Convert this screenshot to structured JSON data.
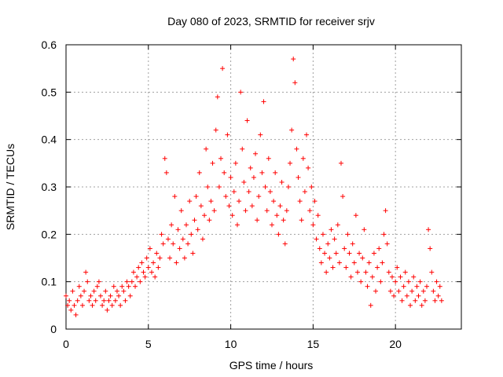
{
  "chart_data": {
    "type": "scatter",
    "title": "Day 080 of 2023, SRMTID for receiver srjv",
    "xlabel": "GPS time / hours",
    "ylabel": "SRMTID / TECUs",
    "xlim": [
      0,
      24
    ],
    "ylim": [
      0,
      0.6
    ],
    "xticks": [
      0,
      5,
      10,
      15,
      20
    ],
    "yticks": [
      0,
      0.1,
      0.2,
      0.3,
      0.4,
      0.5,
      0.6
    ],
    "ytick_labels": [
      "0",
      "0.1",
      "0.2",
      "0.3",
      "0.4",
      "0.5",
      "0.6"
    ],
    "grid": true,
    "marker": "plus",
    "series_color": "#ff0000",
    "series": [
      {
        "name": "SRMTID",
        "points": [
          [
            0.0,
            0.07
          ],
          [
            0.1,
            0.05
          ],
          [
            0.2,
            0.06
          ],
          [
            0.3,
            0.04
          ],
          [
            0.4,
            0.08
          ],
          [
            0.5,
            0.05
          ],
          [
            0.6,
            0.03
          ],
          [
            0.7,
            0.06
          ],
          [
            0.8,
            0.09
          ],
          [
            0.9,
            0.07
          ],
          [
            1.0,
            0.05
          ],
          [
            1.1,
            0.08
          ],
          [
            1.2,
            0.12
          ],
          [
            1.3,
            0.1
          ],
          [
            1.4,
            0.06
          ],
          [
            1.5,
            0.07
          ],
          [
            1.6,
            0.05
          ],
          [
            1.7,
            0.08
          ],
          [
            1.8,
            0.06
          ],
          [
            1.9,
            0.09
          ],
          [
            2.0,
            0.1
          ],
          [
            2.1,
            0.07
          ],
          [
            2.2,
            0.05
          ],
          [
            2.3,
            0.06
          ],
          [
            2.4,
            0.08
          ],
          [
            2.5,
            0.04
          ],
          [
            2.6,
            0.06
          ],
          [
            2.7,
            0.07
          ],
          [
            2.8,
            0.05
          ],
          [
            2.9,
            0.09
          ],
          [
            3.0,
            0.06
          ],
          [
            3.1,
            0.08
          ],
          [
            3.2,
            0.07
          ],
          [
            3.3,
            0.05
          ],
          [
            3.4,
            0.09
          ],
          [
            3.5,
            0.08
          ],
          [
            3.6,
            0.06
          ],
          [
            3.7,
            0.1
          ],
          [
            3.8,
            0.09
          ],
          [
            3.9,
            0.07
          ],
          [
            4.0,
            0.1
          ],
          [
            4.1,
            0.12
          ],
          [
            4.2,
            0.09
          ],
          [
            4.3,
            0.11
          ],
          [
            4.4,
            0.13
          ],
          [
            4.5,
            0.1
          ],
          [
            4.6,
            0.14
          ],
          [
            4.7,
            0.12
          ],
          [
            4.8,
            0.11
          ],
          [
            4.9,
            0.15
          ],
          [
            5.0,
            0.13
          ],
          [
            5.1,
            0.17
          ],
          [
            5.2,
            0.12
          ],
          [
            5.3,
            0.14
          ],
          [
            5.4,
            0.11
          ],
          [
            5.5,
            0.16
          ],
          [
            5.6,
            0.13
          ],
          [
            5.7,
            0.15
          ],
          [
            5.8,
            0.2
          ],
          [
            5.9,
            0.18
          ],
          [
            6.0,
            0.36
          ],
          [
            6.1,
            0.33
          ],
          [
            6.2,
            0.19
          ],
          [
            6.3,
            0.15
          ],
          [
            6.4,
            0.22
          ],
          [
            6.5,
            0.18
          ],
          [
            6.6,
            0.28
          ],
          [
            6.7,
            0.14
          ],
          [
            6.8,
            0.21
          ],
          [
            6.9,
            0.17
          ],
          [
            7.0,
            0.25
          ],
          [
            7.1,
            0.19
          ],
          [
            7.2,
            0.15
          ],
          [
            7.3,
            0.22
          ],
          [
            7.4,
            0.18
          ],
          [
            7.5,
            0.27
          ],
          [
            7.6,
            0.2
          ],
          [
            7.7,
            0.16
          ],
          [
            7.8,
            0.23
          ],
          [
            7.9,
            0.28
          ],
          [
            8.0,
            0.21
          ],
          [
            8.1,
            0.33
          ],
          [
            8.2,
            0.26
          ],
          [
            8.3,
            0.19
          ],
          [
            8.4,
            0.24
          ],
          [
            8.5,
            0.38
          ],
          [
            8.6,
            0.3
          ],
          [
            8.7,
            0.23
          ],
          [
            8.8,
            0.27
          ],
          [
            8.9,
            0.35
          ],
          [
            9.0,
            0.25
          ],
          [
            9.1,
            0.42
          ],
          [
            9.2,
            0.49
          ],
          [
            9.3,
            0.3
          ],
          [
            9.4,
            0.36
          ],
          [
            9.5,
            0.55
          ],
          [
            9.6,
            0.33
          ],
          [
            9.7,
            0.28
          ],
          [
            9.8,
            0.41
          ],
          [
            9.9,
            0.26
          ],
          [
            10.0,
            0.32
          ],
          [
            10.1,
            0.24
          ],
          [
            10.2,
            0.29
          ],
          [
            10.3,
            0.35
          ],
          [
            10.4,
            0.22
          ],
          [
            10.5,
            0.27
          ],
          [
            10.6,
            0.5
          ],
          [
            10.7,
            0.38
          ],
          [
            10.8,
            0.31
          ],
          [
            10.9,
            0.25
          ],
          [
            11.0,
            0.44
          ],
          [
            11.1,
            0.29
          ],
          [
            11.2,
            0.34
          ],
          [
            11.3,
            0.26
          ],
          [
            11.4,
            0.32
          ],
          [
            11.5,
            0.37
          ],
          [
            11.6,
            0.23
          ],
          [
            11.7,
            0.28
          ],
          [
            11.8,
            0.41
          ],
          [
            11.9,
            0.33
          ],
          [
            12.0,
            0.48
          ],
          [
            12.1,
            0.3
          ],
          [
            12.2,
            0.25
          ],
          [
            12.3,
            0.36
          ],
          [
            12.4,
            0.29
          ],
          [
            12.5,
            0.22
          ],
          [
            12.6,
            0.27
          ],
          [
            12.7,
            0.33
          ],
          [
            12.8,
            0.24
          ],
          [
            12.9,
            0.2
          ],
          [
            13.0,
            0.26
          ],
          [
            13.1,
            0.31
          ],
          [
            13.2,
            0.23
          ],
          [
            13.3,
            0.18
          ],
          [
            13.4,
            0.25
          ],
          [
            13.5,
            0.3
          ],
          [
            13.6,
            0.35
          ],
          [
            13.7,
            0.42
          ],
          [
            13.8,
            0.57
          ],
          [
            13.9,
            0.52
          ],
          [
            14.0,
            0.38
          ],
          [
            14.1,
            0.32
          ],
          [
            14.2,
            0.27
          ],
          [
            14.3,
            0.23
          ],
          [
            14.4,
            0.36
          ],
          [
            14.5,
            0.29
          ],
          [
            14.6,
            0.41
          ],
          [
            14.7,
            0.34
          ],
          [
            14.8,
            0.25
          ],
          [
            14.9,
            0.3
          ],
          [
            15.0,
            0.22
          ],
          [
            15.1,
            0.27
          ],
          [
            15.2,
            0.19
          ],
          [
            15.3,
            0.24
          ],
          [
            15.4,
            0.17
          ],
          [
            15.5,
            0.14
          ],
          [
            15.6,
            0.2
          ],
          [
            15.7,
            0.16
          ],
          [
            15.8,
            0.12
          ],
          [
            15.9,
            0.18
          ],
          [
            16.0,
            0.15
          ],
          [
            16.1,
            0.21
          ],
          [
            16.2,
            0.13
          ],
          [
            16.3,
            0.19
          ],
          [
            16.4,
            0.16
          ],
          [
            16.5,
            0.22
          ],
          [
            16.6,
            0.14
          ],
          [
            16.7,
            0.35
          ],
          [
            16.8,
            0.28
          ],
          [
            16.9,
            0.17
          ],
          [
            17.0,
            0.13
          ],
          [
            17.1,
            0.2
          ],
          [
            17.2,
            0.16
          ],
          [
            17.3,
            0.11
          ],
          [
            17.4,
            0.18
          ],
          [
            17.5,
            0.14
          ],
          [
            17.6,
            0.24
          ],
          [
            17.7,
            0.12
          ],
          [
            17.8,
            0.16
          ],
          [
            17.9,
            0.1
          ],
          [
            18.0,
            0.15
          ],
          [
            18.1,
            0.21
          ],
          [
            18.2,
            0.12
          ],
          [
            18.3,
            0.09
          ],
          [
            18.4,
            0.14
          ],
          [
            18.5,
            0.05
          ],
          [
            18.6,
            0.11
          ],
          [
            18.7,
            0.16
          ],
          [
            18.8,
            0.08
          ],
          [
            18.9,
            0.13
          ],
          [
            19.0,
            0.17
          ],
          [
            19.1,
            0.1
          ],
          [
            19.2,
            0.14
          ],
          [
            19.3,
            0.2
          ],
          [
            19.4,
            0.25
          ],
          [
            19.5,
            0.18
          ],
          [
            19.6,
            0.12
          ],
          [
            19.7,
            0.08
          ],
          [
            19.8,
            0.11
          ],
          [
            19.9,
            0.07
          ],
          [
            20.0,
            0.1
          ],
          [
            20.1,
            0.13
          ],
          [
            20.2,
            0.08
          ],
          [
            20.3,
            0.11
          ],
          [
            20.4,
            0.06
          ],
          [
            20.5,
            0.09
          ],
          [
            20.6,
            0.12
          ],
          [
            20.7,
            0.07
          ],
          [
            20.8,
            0.1
          ],
          [
            20.9,
            0.05
          ],
          [
            21.0,
            0.08
          ],
          [
            21.1,
            0.11
          ],
          [
            21.2,
            0.06
          ],
          [
            21.3,
            0.09
          ],
          [
            21.4,
            0.07
          ],
          [
            21.5,
            0.1
          ],
          [
            21.6,
            0.05
          ],
          [
            21.7,
            0.08
          ],
          [
            21.8,
            0.06
          ],
          [
            21.9,
            0.09
          ],
          [
            22.0,
            0.21
          ],
          [
            22.1,
            0.17
          ],
          [
            22.2,
            0.12
          ],
          [
            22.3,
            0.08
          ],
          [
            22.4,
            0.06
          ],
          [
            22.5,
            0.1
          ],
          [
            22.6,
            0.07
          ],
          [
            22.7,
            0.09
          ],
          [
            22.8,
            0.06
          ]
        ]
      }
    ]
  }
}
